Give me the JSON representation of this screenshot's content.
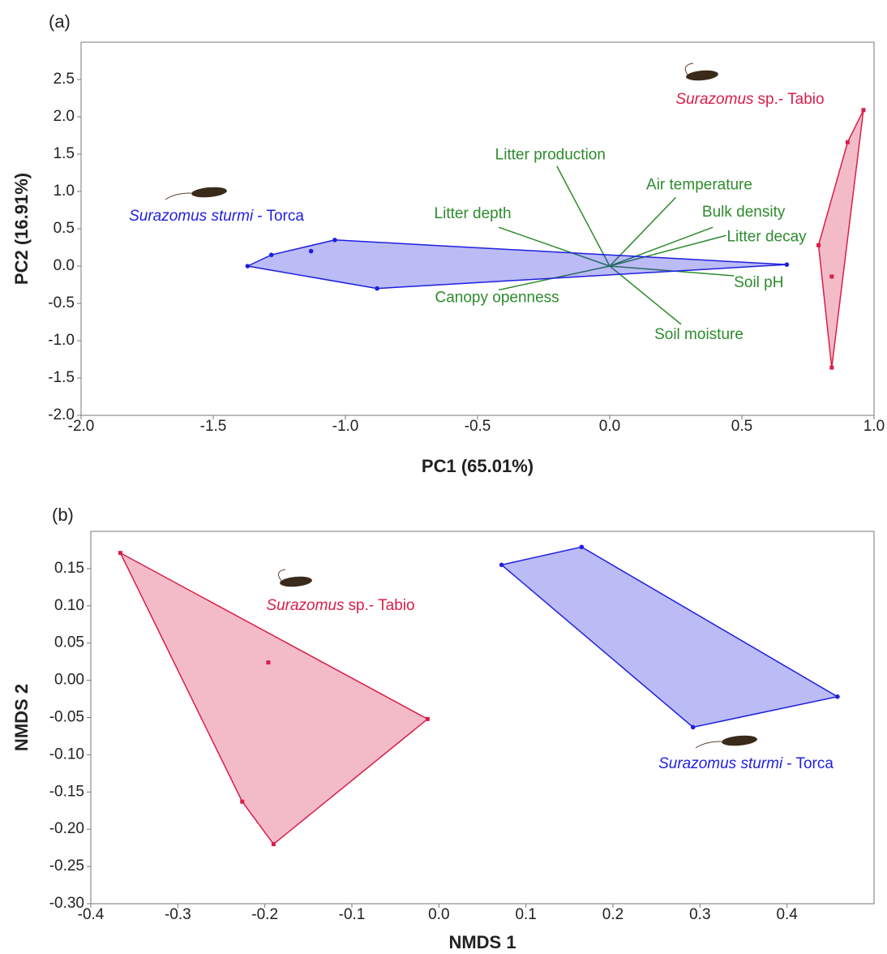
{
  "chart_data": [
    {
      "type": "scatter",
      "panel_label": "(a)",
      "xlabel": "PC1 (65.01%)",
      "ylabel": "PC2 (16.91%)",
      "xlim": [
        -2.0,
        1.0
      ],
      "ylim": [
        -2.0,
        3.0
      ],
      "xticks": [
        {
          "value": -2,
          "label": "-2.0"
        },
        -1.5,
        {
          "value": -1,
          "label": "-1.0"
        },
        -0.5,
        {
          "value": 0,
          "label": "0.0"
        },
        0.5,
        {
          "value": 1,
          "label": "1.0"
        }
      ],
      "yticks": [
        {
          "value": -2,
          "label": "-2.0"
        },
        -1.5,
        {
          "value": -1,
          "label": "-1.0"
        },
        -0.5,
        {
          "value": 0,
          "label": "0.0"
        },
        0.5,
        {
          "value": 1,
          "label": "1.0"
        },
        1.5,
        {
          "value": 2,
          "label": "2.0"
        },
        2.5
      ],
      "series": [
        {
          "label_italic": "Surazomus sturmi",
          "label_rest": "- Torca",
          "color": "#1f1fe0",
          "marker": "circle",
          "x": [
            -1.37,
            -1.28,
            -1.04,
            -0.88,
            0.67,
            -1.13
          ],
          "y": [
            0.0,
            0.15,
            0.35,
            -0.3,
            0.02,
            0.2
          ]
        },
        {
          "label_italic": "Surazomus",
          "label_rest": "sp.- Tabio",
          "color": "#d81e4a",
          "marker": "square",
          "x": [
            0.96,
            0.9,
            0.79,
            0.84,
            0.84
          ],
          "y": [
            2.09,
            1.66,
            0.28,
            -0.14,
            -1.36
          ]
        }
      ],
      "vectors_color": "#2e8b2e",
      "vectors": [
        {
          "name": "Litter production",
          "x": -0.2,
          "y": 1.34
        },
        {
          "name": "Air temperature",
          "x": 0.25,
          "y": 0.92
        },
        {
          "name": "Bulk density",
          "x": 0.39,
          "y": 0.52
        },
        {
          "name": "Litter decay",
          "x": 0.44,
          "y": 0.41
        },
        {
          "name": "Soil pH",
          "x": 0.47,
          "y": -0.13
        },
        {
          "name": "Soil moisture",
          "x": 0.27,
          "y": -0.78
        },
        {
          "name": "Canopy openness",
          "x": -0.42,
          "y": -0.32
        },
        {
          "name": "Litter depth",
          "x": -0.42,
          "y": 0.52
        }
      ]
    },
    {
      "type": "scatter",
      "panel_label": "(b)",
      "xlabel": "NMDS 1",
      "ylabel": "NMDS 2",
      "xlim": [
        -0.4,
        0.5
      ],
      "ylim": [
        -0.3,
        0.2
      ],
      "xticks": [
        -0.4,
        -0.3,
        -0.2,
        -0.1,
        {
          "value": 0,
          "label": "0.0"
        },
        0.1,
        0.2,
        0.3,
        0.4
      ],
      "yticks": [
        {
          "value": -0.3,
          "label": "-0.30"
        },
        -0.25,
        {
          "value": -0.2,
          "label": "-0.20"
        },
        -0.15,
        {
          "value": -0.1,
          "label": "-0.10"
        },
        -0.05,
        {
          "value": 0,
          "label": "0.00"
        },
        0.05,
        {
          "value": 0.1,
          "label": "0.10"
        },
        0.15
      ],
      "series": [
        {
          "label_italic": "Surazomus",
          "label_rest": "sp.- Tabio",
          "color": "#d81e4a",
          "marker": "square",
          "x": [
            -0.366,
            -0.196,
            -0.013,
            -0.226,
            -0.19
          ],
          "y": [
            0.171,
            0.024,
            -0.052,
            -0.163,
            -0.22
          ]
        },
        {
          "label_italic": "Surazomus sturmi",
          "label_rest": "- Torca",
          "color": "#1f1fe0",
          "marker": "circle",
          "x": [
            0.072,
            0.164,
            0.458,
            0.292
          ],
          "y": [
            0.155,
            0.179,
            -0.022,
            -0.063
          ]
        }
      ]
    }
  ]
}
